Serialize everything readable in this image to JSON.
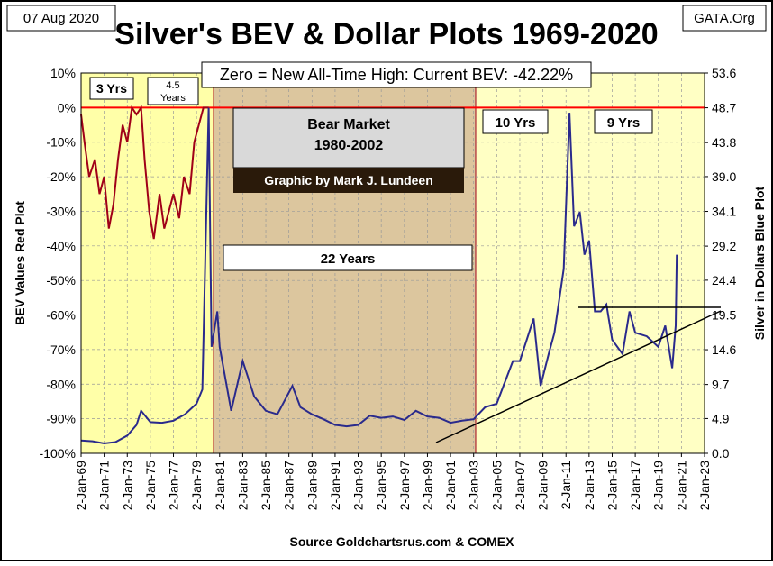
{
  "chart_data": {
    "type": "line",
    "title": "Silver's BEV & Dollar Plots 1969-2020",
    "date_label": "07 Aug 2020",
    "source_tag": "GATA.Org",
    "ylabel": "BEV Values   Red Plot",
    "y2label": "Silver in Dollars  Blue Plot",
    "xlabel": "Source Goldchartsrus.com & COMEX",
    "annotations": {
      "current": "Zero = New All-Time High: Current BEV: -42.22%",
      "yrs3": "3 Yrs",
      "yrs45": [
        "4.5",
        "Years"
      ],
      "bear": [
        "Bear Market",
        "1980-2002"
      ],
      "credit": "Graphic by Mark J. Lundeen",
      "yrs22": "22 Years",
      "yrs10": "10 Yrs",
      "yrs9": "9 Yrs"
    },
    "xlim": [
      1969,
      2023
    ],
    "xticks": [
      {
        "value": 1969,
        "label": "2-Jan-69"
      },
      {
        "value": 1971,
        "label": "2-Jan-71"
      },
      {
        "value": 1973,
        "label": "2-Jan-73"
      },
      {
        "value": 1975,
        "label": "2-Jan-75"
      },
      {
        "value": 1977,
        "label": "2-Jan-77"
      },
      {
        "value": 1979,
        "label": "2-Jan-79"
      },
      {
        "value": 1981,
        "label": "2-Jan-81"
      },
      {
        "value": 1983,
        "label": "2-Jan-83"
      },
      {
        "value": 1985,
        "label": "2-Jan-85"
      },
      {
        "value": 1987,
        "label": "2-Jan-87"
      },
      {
        "value": 1989,
        "label": "2-Jan-89"
      },
      {
        "value": 1991,
        "label": "2-Jan-91"
      },
      {
        "value": 1993,
        "label": "2-Jan-93"
      },
      {
        "value": 1995,
        "label": "2-Jan-95"
      },
      {
        "value": 1997,
        "label": "2-Jan-97"
      },
      {
        "value": 1999,
        "label": "2-Jan-99"
      },
      {
        "value": 2001,
        "label": "2-Jan-01"
      },
      {
        "value": 2003,
        "label": "2-Jan-03"
      },
      {
        "value": 2005,
        "label": "2-Jan-05"
      },
      {
        "value": 2007,
        "label": "2-Jan-07"
      },
      {
        "value": 2009,
        "label": "2-Jan-09"
      },
      {
        "value": 2011,
        "label": "2-Jan-11"
      },
      {
        "value": 2013,
        "label": "2-Jan-13"
      },
      {
        "value": 2015,
        "label": "2-Jan-15"
      },
      {
        "value": 2017,
        "label": "2-Jan-17"
      },
      {
        "value": 2019,
        "label": "2-Jan-19"
      },
      {
        "value": 2021,
        "label": "2-Jan-21"
      },
      {
        "value": 2023,
        "label": "2-Jan-23"
      }
    ],
    "ylim": [
      -100,
      10
    ],
    "yticks": [
      {
        "value": 10,
        "label": "10%"
      },
      {
        "value": 0,
        "label": "0%"
      },
      {
        "value": -10,
        "label": "-10%"
      },
      {
        "value": -20,
        "label": "-20%"
      },
      {
        "value": -30,
        "label": "-30%"
      },
      {
        "value": -40,
        "label": "-40%"
      },
      {
        "value": -50,
        "label": "-50%"
      },
      {
        "value": -60,
        "label": "-60%"
      },
      {
        "value": -70,
        "label": "-70%"
      },
      {
        "value": -80,
        "label": "-80%"
      },
      {
        "value": -90,
        "label": "-90%"
      },
      {
        "value": -100,
        "label": "-100%"
      }
    ],
    "y2lim": [
      0,
      53.6
    ],
    "y2ticks": [
      {
        "value": 0,
        "label": "0.0"
      },
      4.9,
      9.7,
      14.6,
      19.5,
      24.4,
      29.2,
      34.1,
      {
        "value": 39,
        "label": "39.0"
      },
      43.8,
      48.7,
      53.6
    ],
    "grid": true,
    "series": [
      {
        "color": "#a00018",
        "axis": "y",
        "x": [
          1969.0,
          1969.3,
          1969.7,
          1970.2,
          1970.6,
          1971.0,
          1971.4,
          1971.8,
          1972.2,
          1972.6,
          1973.0,
          1973.4,
          1973.8,
          1974.2,
          1974.5,
          1974.9,
          1975.3,
          1975.8,
          1976.2,
          1976.6,
          1977.0,
          1977.5,
          1977.9,
          1978.4,
          1978.8,
          1979.2,
          1979.6,
          1979.9,
          1980.05
        ],
        "values": [
          -2,
          -10,
          -20,
          -15,
          -25,
          -20,
          -35,
          -28,
          -15,
          -5,
          -10,
          0,
          -2,
          0,
          -15,
          -30,
          -38,
          -25,
          -35,
          -30,
          -25,
          -32,
          -20,
          -25,
          -10,
          -5,
          0,
          0,
          0
        ]
      },
      {
        "color": "#2a2a8c",
        "axis": "y2",
        "x": [
          1969.0,
          1970.0,
          1971.0,
          1972.0,
          1973.0,
          1973.8,
          1974.2,
          1975.0,
          1976.0,
          1977.0,
          1978.0,
          1979.0,
          1979.5,
          1980.05,
          1980.3,
          1980.8,
          1981.0,
          1982.0,
          1983.0,
          1984.0,
          1985.0,
          1986.0,
          1987.3,
          1988.0,
          1989.0,
          1990.0,
          1991.0,
          1992.0,
          1993.0,
          1994.0,
          1995.0,
          1996.0,
          1997.0,
          1998.0,
          1999.0,
          2000.0,
          2001.0,
          2002.0,
          2003.0,
          2004.0,
          2005.0,
          2006.4,
          2007.0,
          2008.2,
          2008.8,
          2009.5,
          2010.0,
          2010.8,
          2011.3,
          2011.7,
          2012.2,
          2012.6,
          2013.0,
          2013.5,
          2014.0,
          2014.5,
          2015.0,
          2015.9,
          2016.5,
          2017.0,
          2018.0,
          2019.0,
          2019.6,
          2020.2,
          2020.5,
          2020.6
        ],
        "values": [
          1.8,
          1.7,
          1.4,
          1.6,
          2.5,
          4.0,
          6.0,
          4.4,
          4.3,
          4.6,
          5.5,
          7.0,
          9.0,
          48.7,
          15,
          20,
          15,
          6,
          13,
          8,
          6,
          5.5,
          9.5,
          6.5,
          5.5,
          4.8,
          4.0,
          3.8,
          4.0,
          5.3,
          5.0,
          5.2,
          4.7,
          6.0,
          5.2,
          5.0,
          4.3,
          4.6,
          4.8,
          6.5,
          7.0,
          13,
          13,
          19,
          9.5,
          14,
          17,
          26,
          48,
          32,
          34,
          28,
          30,
          20,
          20,
          21,
          16,
          14,
          20,
          17,
          16.5,
          15,
          18,
          12,
          18,
          28
        ]
      }
    ]
  }
}
